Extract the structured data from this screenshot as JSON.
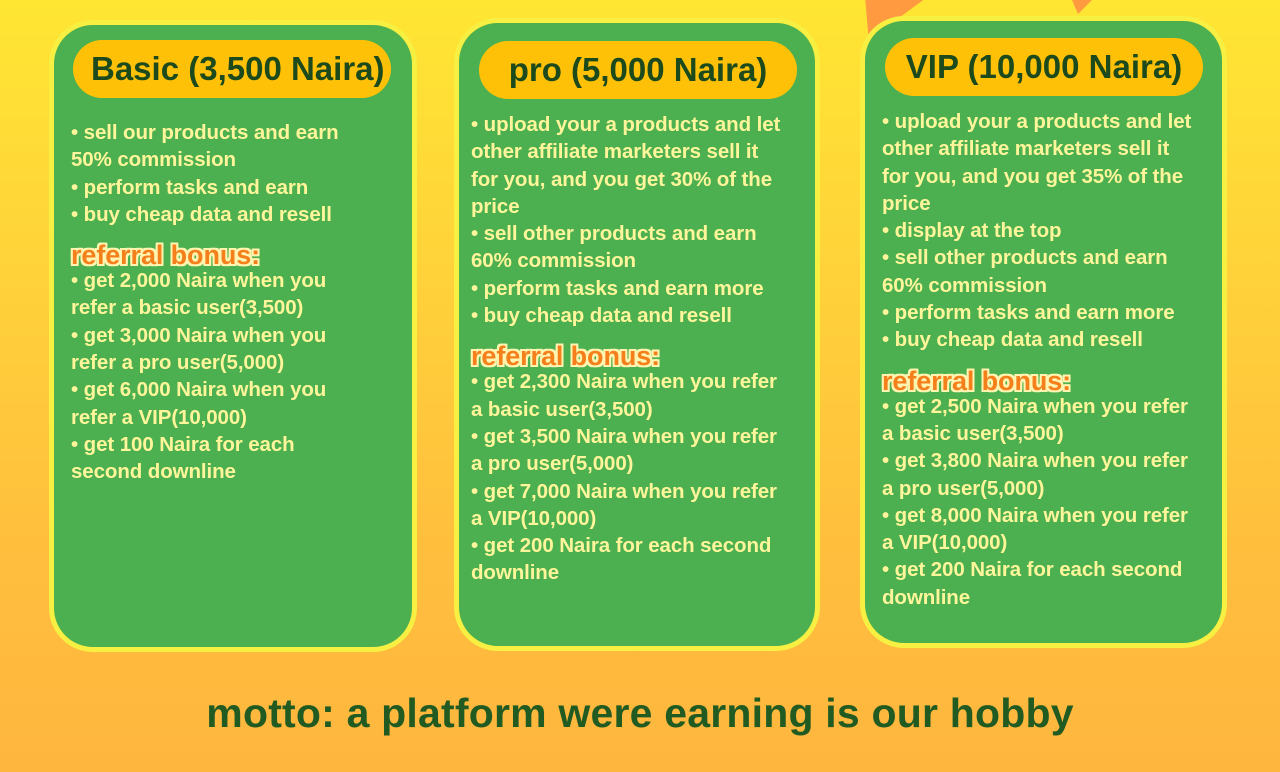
{
  "plans": {
    "basic": {
      "title": "Basic (3,500 Naira)",
      "features": [
        "• sell our products and earn",
        "50% commission",
        "• perform tasks and earn",
        "• buy cheap data and resell"
      ],
      "referral_heading": "referral bonus:",
      "referral": [
        "• get 2,000 Naira when you",
        "refer a basic user(3,500)",
        "• get 3,000 Naira when you",
        "refer a pro user(5,000)",
        "• get 6,000 Naira when you",
        "refer a VIP(10,000)",
        "• get 100 Naira for each",
        "second downline"
      ]
    },
    "pro": {
      "title": "pro (5,000 Naira)",
      "features": [
        "• upload your a products and let",
        "other affiliate marketers sell it",
        "for you, and you get 30% of the",
        "price",
        "• sell other products and earn",
        "60% commission",
        "• perform tasks and earn more",
        "• buy cheap data and resell"
      ],
      "referral_heading": "referral bonus:",
      "referral": [
        "• get 2,300 Naira when you refer",
        "a basic user(3,500)",
        "• get 3,500 Naira when you refer",
        "a pro user(5,000)",
        "• get 7,000 Naira when you refer",
        "a VIP(10,000)",
        "• get 200 Naira for each second",
        "downline"
      ]
    },
    "vip": {
      "title": "VIP (10,000 Naira)",
      "features": [
        "• upload your a products and let",
        "other affiliate marketers sell it",
        "for you, and you get 35% of the",
        "price",
        "• display at the top",
        "• sell other products and earn",
        "60% commission",
        "• perform tasks and earn more",
        "• buy cheap data and resell"
      ],
      "referral_heading": "referral bonus:",
      "referral": [
        "• get 2,500 Naira when you refer",
        "a basic user(3,500)",
        "• get 3,800 Naira when you refer",
        "a pro user(5,000)",
        "• get 8,000 Naira when you refer",
        "a VIP(10,000)",
        "• get 200 Naira for each second",
        "downline"
      ]
    }
  },
  "motto": "motto: a platform were earning is our hobby",
  "colors": {
    "card_green": "#4caf50",
    "card_border": "#f7ef42",
    "pill_yellow": "#ffc107",
    "body_text": "#fff59a",
    "heading_orange": "#f47f1b",
    "motto_green": "#215b22"
  }
}
